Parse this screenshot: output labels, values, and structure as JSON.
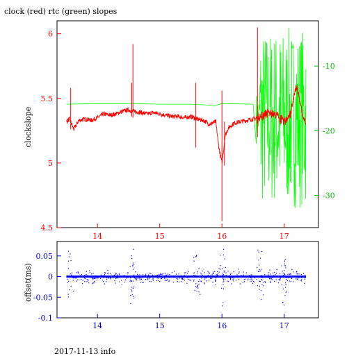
{
  "title": "clock (red) rtc (green) slopes",
  "footer": "2017-11-13 info",
  "colors": {
    "red": "#ff0000",
    "green": "#00ff00",
    "blue": "#0000ff",
    "axis_left": "#ff0000",
    "axis_right": "#00bb00",
    "axis_bottom_lower": "#0000cc"
  },
  "chart_data": [
    {
      "type": "line",
      "ylabel": "clockslope",
      "xlim": [
        13.35,
        17.55
      ],
      "ylim": [
        4.5,
        6.1
      ],
      "y2lim": [
        -35,
        -3
      ],
      "x_ticks": [
        14,
        15,
        16,
        17
      ],
      "y_ticks": [
        "4.5",
        "5",
        "5.5",
        "6"
      ],
      "y2_ticks": [
        "-10",
        "-20",
        "-30"
      ],
      "series": [
        {
          "color": "red",
          "x": [
            13.5,
            13.55,
            13.62,
            13.7,
            13.8,
            13.9,
            14.0,
            14.1,
            14.2,
            14.3,
            14.4,
            14.5,
            14.56,
            14.6,
            14.7,
            14.8,
            14.9,
            15.0,
            15.1,
            15.2,
            15.3,
            15.4,
            15.5,
            15.6,
            15.7,
            15.8,
            15.9,
            15.95,
            16.0,
            16.05,
            16.1,
            16.2,
            16.3,
            16.4,
            16.5,
            16.6,
            16.65,
            16.7,
            16.8,
            16.9,
            17.0,
            17.1,
            17.2,
            17.3,
            17.35
          ],
          "y": [
            5.32,
            5.34,
            5.26,
            5.33,
            5.34,
            5.33,
            5.35,
            5.38,
            5.37,
            5.38,
            5.4,
            5.41,
            5.4,
            5.4,
            5.39,
            5.38,
            5.39,
            5.38,
            5.37,
            5.36,
            5.36,
            5.35,
            5.36,
            5.34,
            5.33,
            5.3,
            5.32,
            5.12,
            5.0,
            5.21,
            5.27,
            5.31,
            5.32,
            5.33,
            5.34,
            5.35,
            5.36,
            5.38,
            5.39,
            5.36,
            5.32,
            5.38,
            5.6,
            5.35,
            5.31
          ]
        },
        {
          "color": "green",
          "x": [
            13.5,
            14.0,
            14.5,
            15.0,
            15.5,
            15.9,
            16.0,
            16.5,
            16.6,
            16.7,
            16.8,
            16.9,
            17.0,
            17.1,
            17.2,
            17.3,
            17.35
          ],
          "y": [
            -15.9,
            -15.8,
            -15.8,
            -15.9,
            -15.9,
            -16.1,
            -15.8,
            -15.9,
            -18,
            -16,
            -19,
            -18,
            -20,
            -17,
            -16,
            -19,
            -18
          ]
        }
      ]
    },
    {
      "type": "scatter",
      "ylabel": "offset(ms)",
      "xlim": [
        13.35,
        17.55
      ],
      "ylim": [
        -0.1,
        0.085
      ],
      "x_ticks": [
        14,
        15,
        16,
        17
      ],
      "y_ticks": [
        "0.05",
        "0",
        "-0.05",
        "-0.1"
      ],
      "series": [
        {
          "color": "blue",
          "x_range": [
            13.5,
            17.35
          ],
          "y_center": 0
        }
      ]
    }
  ]
}
